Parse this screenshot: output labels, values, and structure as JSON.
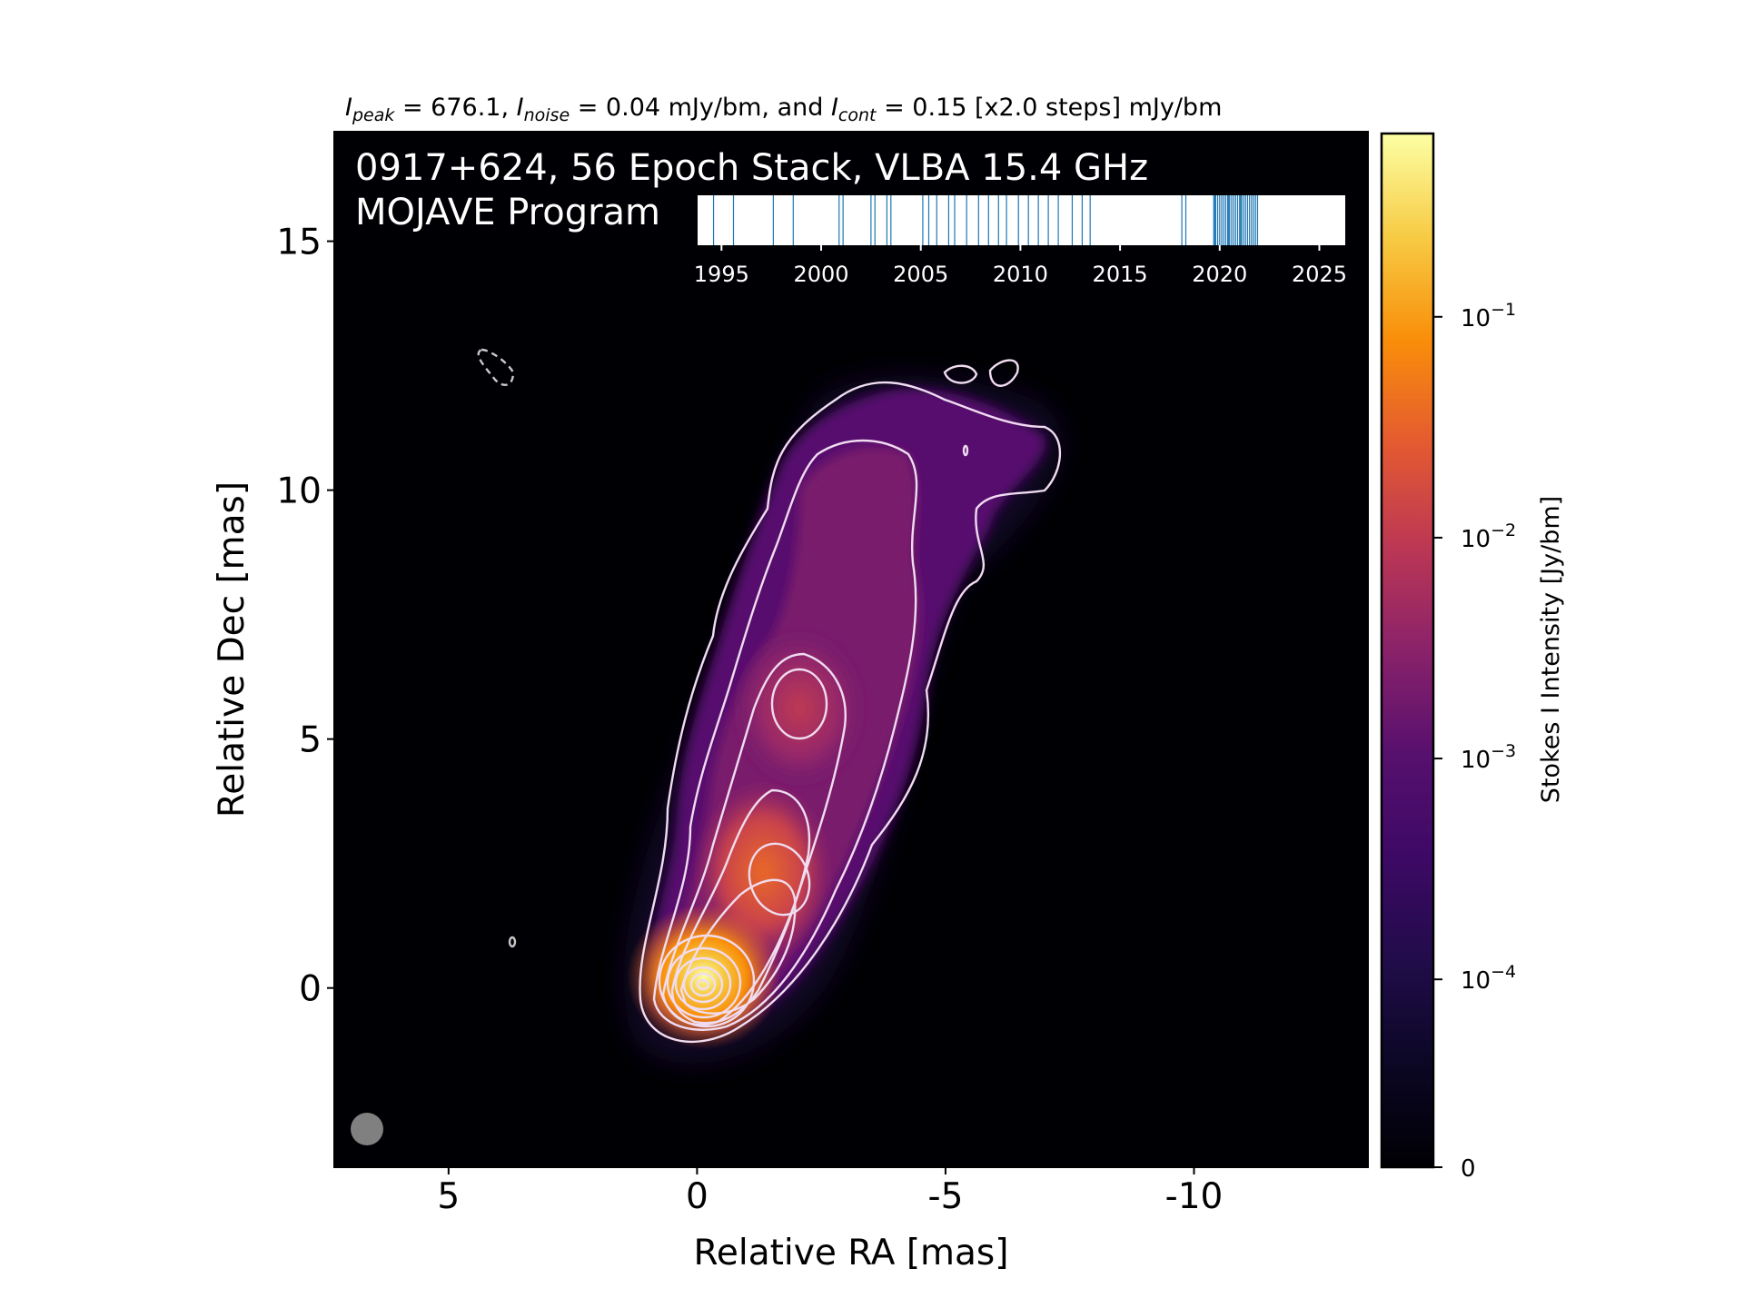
{
  "chart_data": {
    "type": "heatmap",
    "title": {
      "prefix_peak_sym": "I",
      "peak_sub": "peak",
      "peak_text": " = 676.1, ",
      "noise_sym": "I",
      "noise_sub": "noise",
      "noise_text": " = 0.04 mJy/bm, and ",
      "cont_sym": "I",
      "cont_sub": "cont",
      "cont_text": " = 0.15 [x2.0 steps] mJy/bm"
    },
    "panel_title_line1": "0917+624, 56 Epoch Stack, VLBA 15.4 GHz",
    "panel_title_line2": "MOJAVE Program",
    "xlabel": "Relative RA [mas]",
    "ylabel": "Relative Dec [mas]",
    "xlim": [
      7.3,
      -13.5
    ],
    "ylim": [
      -3.6,
      17.2
    ],
    "xticks": [
      "5",
      "0",
      "-5",
      "-10"
    ],
    "xtick_values": [
      5,
      0,
      -5,
      -10
    ],
    "yticks": [
      "0",
      "5",
      "10",
      "15"
    ],
    "ytick_values": [
      0,
      5,
      10,
      15
    ],
    "colorbar": {
      "label": "Stokes I Intensity [Jy/bm]",
      "scale": "log",
      "tick_bases": [
        "10",
        "10",
        "10",
        "10",
        "0"
      ],
      "tick_exps": [
        "−1",
        "−2",
        "−3",
        "−4",
        ""
      ],
      "tick_values": [
        0.1,
        0.01,
        0.001,
        0.0001,
        0
      ],
      "range": [
        0,
        0.676
      ],
      "colormap": "inferno"
    },
    "peak_intensity_mJy": 676.1,
    "noise_mJy": 0.04,
    "lowest_contour_mJy": 0.15,
    "contour_step_factor": 2.0,
    "core_position_mas": [
      0,
      0
    ],
    "epochs": {
      "count": 56,
      "axis_ticks": [
        "1995",
        "2000",
        "2005",
        "2010",
        "2015",
        "2020",
        "2025"
      ],
      "axis_tick_values": [
        1995,
        2000,
        2005,
        2010,
        2015,
        2020,
        2025
      ],
      "xlim": [
        1993.8,
        2026.3
      ],
      "years": [
        1994.6,
        1995.6,
        1997.6,
        1998.6,
        2000.9,
        2001.1,
        2002.5,
        2002.7,
        2003.3,
        2003.5,
        2005.1,
        2005.4,
        2005.8,
        2006.4,
        2006.7,
        2007.3,
        2007.9,
        2008.4,
        2008.9,
        2009.3,
        2009.9,
        2010.4,
        2010.9,
        2011.4,
        2011.9,
        2012.6,
        2013.1,
        2013.5,
        2018.1,
        2018.3,
        2019.7,
        2019.8,
        2019.9,
        2020.0,
        2020.1,
        2020.2,
        2020.3,
        2020.4,
        2020.5,
        2020.6,
        2020.7,
        2020.8,
        2020.9,
        2021.0,
        2021.1,
        2021.2,
        2021.3,
        2021.4,
        2021.5,
        2021.6,
        2021.7,
        2021.8,
        2021.9,
        2019.75,
        2020.45,
        2021.05
      ]
    },
    "colors": {
      "background": "#000004",
      "contour": "#ffffff",
      "epoch_line": "#1f77b4",
      "beam": "#808080"
    }
  }
}
